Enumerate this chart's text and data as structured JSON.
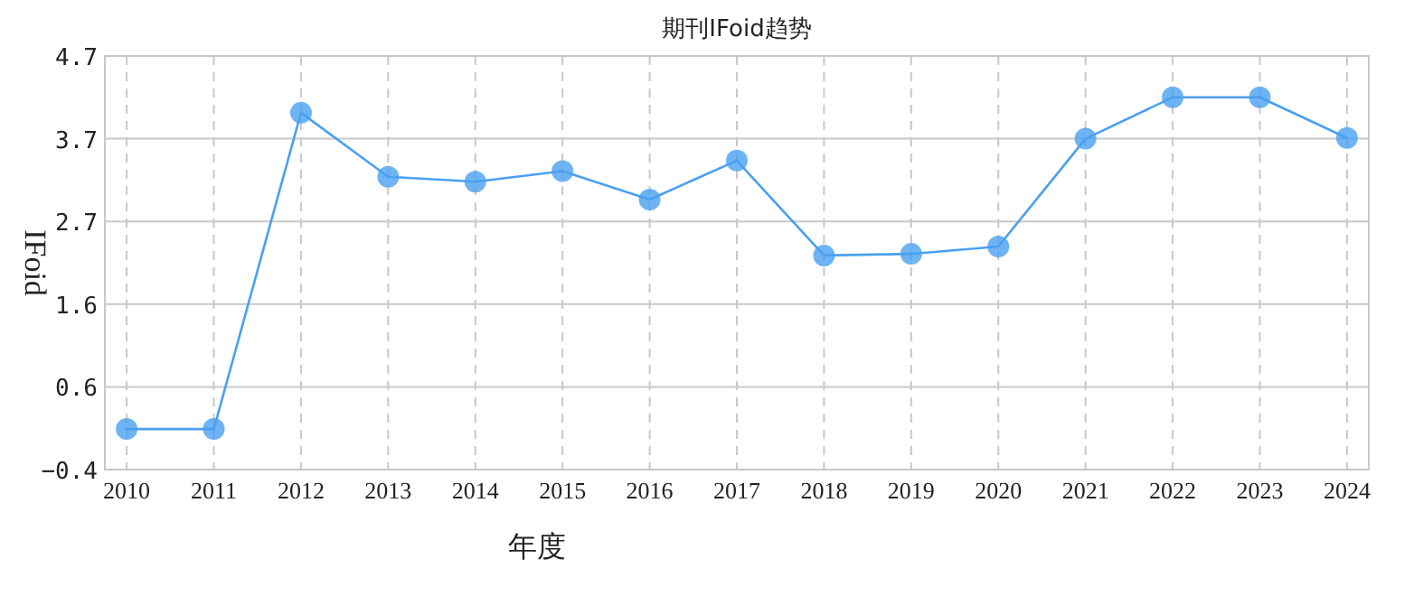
{
  "chart_data": {
    "type": "line",
    "title": "期刊IFoid趋势",
    "xlabel": "年度",
    "ylabel": "IFoid",
    "categories": [
      "2010",
      "2011",
      "2012",
      "2013",
      "2014",
      "2015",
      "2016",
      "2017",
      "2018",
      "2019",
      "2020",
      "2021",
      "2022",
      "2023",
      "2024"
    ],
    "series": [
      {
        "color": "#4aa0f0",
        "values": [
          0.1,
          0.1,
          4.0,
          3.21,
          3.15,
          3.28,
          2.93,
          3.41,
          2.24,
          2.26,
          2.35,
          3.68,
          4.19,
          4.19,
          3.69
        ]
      }
    ],
    "ylim": [
      -0.4,
      4.7
    ],
    "yticks": [
      -0.4,
      {
        "value": 0.62,
        "label": "0.6"
      },
      {
        "value": 1.64,
        "label": "1.6"
      },
      {
        "value": 2.66,
        "label": "2.7"
      },
      {
        "value": 3.68,
        "label": "3.7"
      },
      4.7
    ],
    "grid": true,
    "marker": "circle",
    "line_style": "solid"
  }
}
